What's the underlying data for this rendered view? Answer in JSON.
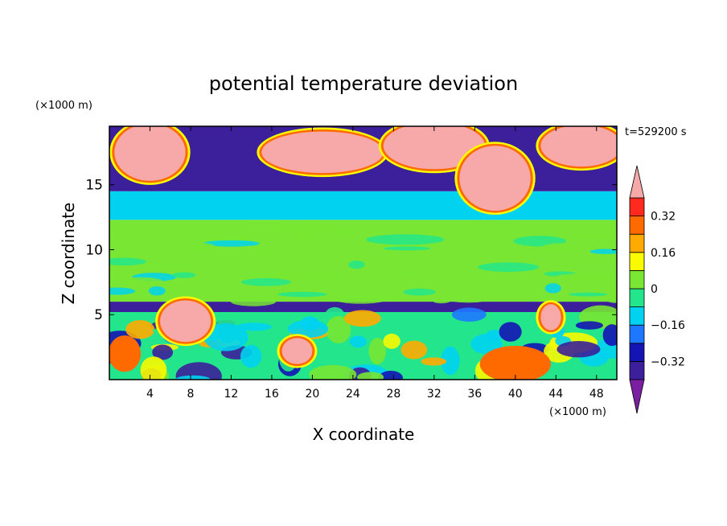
{
  "chart_data": {
    "type": "heatmap",
    "title": "potential temperature deviation",
    "time_label": "t=529200 s",
    "xlabel": "X coordinate",
    "ylabel": "Z coordinate",
    "x_unit": "(×1000 m)",
    "y_unit": "(×1000 m)",
    "xlim": [
      0,
      50
    ],
    "ylim": [
      0,
      19.5
    ],
    "x_ticks": [
      4,
      8,
      12,
      16,
      20,
      24,
      28,
      32,
      36,
      40,
      44,
      48
    ],
    "x_tick_labels": [
      "4",
      "8",
      "12",
      "16",
      "20",
      "24",
      "28",
      "32",
      "36",
      "40",
      "44",
      "48"
    ],
    "y_ticks": [
      5,
      10,
      15
    ],
    "y_tick_labels": [
      "5",
      "10",
      "15"
    ],
    "colorbar": {
      "levels": [
        -0.4,
        -0.32,
        -0.24,
        -0.16,
        -0.08,
        0,
        0.08,
        0.16,
        0.24,
        0.32,
        0.4
      ],
      "tick_values": [
        0.32,
        0.16,
        0,
        -0.16,
        -0.32
      ],
      "tick_labels": [
        "0.32",
        "0.16",
        "0",
        "−0.16",
        "−0.32"
      ],
      "colors": [
        "#7a1fa2",
        "#3c1f9a",
        "#1414b4",
        "#1e78ff",
        "#00d2f0",
        "#23e68c",
        "#78e632",
        "#fafa00",
        "#ffaa00",
        "#ff6a00",
        "#ff2a1e",
        "#f7a8a8"
      ],
      "extend": "both"
    },
    "bands": [
      {
        "z": [
          0,
          5.2
        ],
        "description_value": "mixed",
        "value": -0.05
      },
      {
        "z": [
          5.2,
          6.0
        ],
        "value": -0.38
      },
      {
        "z": [
          6.0,
          12.3
        ],
        "value": 0.02
      },
      {
        "z": [
          12.3,
          14.5
        ],
        "value": -0.12
      },
      {
        "z": [
          14.5,
          19.5
        ],
        "value": -0.38
      }
    ],
    "blobs": [
      {
        "x": 4,
        "z": 17.5,
        "rx": 3.5,
        "rz": 2.2,
        "value": 0.45
      },
      {
        "x": 21,
        "z": 17.5,
        "rx": 6,
        "rz": 1.6,
        "value": 0.45
      },
      {
        "x": 32,
        "z": 18,
        "rx": 5,
        "rz": 1.8,
        "value": 0.45
      },
      {
        "x": 38,
        "z": 15.5,
        "rx": 3.5,
        "rz": 2.5,
        "value": 0.45
      },
      {
        "x": 46.5,
        "z": 18,
        "rx": 4,
        "rz": 1.6,
        "value": 0.45
      },
      {
        "x": 7.5,
        "z": 4.5,
        "rx": 2.5,
        "rz": 1.6,
        "value": 0.45
      },
      {
        "x": 18.5,
        "z": 2.2,
        "rx": 1.5,
        "rz": 1,
        "value": 0.45
      },
      {
        "x": 43.5,
        "z": 4.8,
        "rx": 1,
        "rz": 1,
        "value": 0.45
      },
      {
        "x": 1.5,
        "z": 2,
        "rx": 1.6,
        "rz": 1.4,
        "value": 0.3
      },
      {
        "x": 40,
        "z": 1.2,
        "rx": 3.5,
        "rz": 1.4,
        "value": 0.25
      }
    ]
  }
}
